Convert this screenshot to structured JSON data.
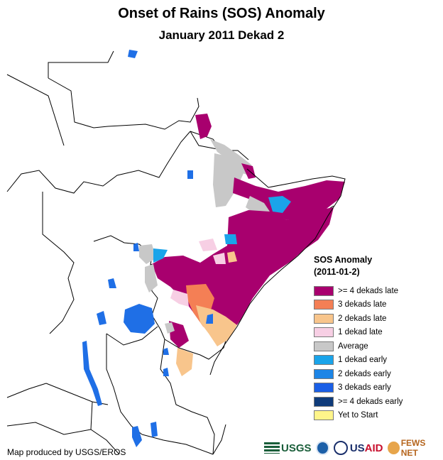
{
  "title": "Onset of Rains (SOS) Anomaly",
  "subtitle": "January 2011 Dekad 2",
  "legend": {
    "title": "SOS Anomaly",
    "date": "(2011-01-2)",
    "items": [
      {
        "label": ">= 4 dekads late",
        "color": "#a8006e"
      },
      {
        "label": "3 dekads late",
        "color": "#f47f55"
      },
      {
        "label": "2 dekads late",
        "color": "#f8c58c"
      },
      {
        "label": "1 dekad late",
        "color": "#f7cfe4"
      },
      {
        "label": "Average",
        "color": "#c8c8c8"
      },
      {
        "label": "1 dekad early",
        "color": "#1aa4ea"
      },
      {
        "label": "2 dekads early",
        "color": "#1d85e6"
      },
      {
        "label": "3 dekads early",
        "color": "#1a5fe6"
      },
      {
        "label": ">= 4 dekads early",
        "color": "#0f3b7a"
      },
      {
        "label": "Yet to Start",
        "color": "#fff58a"
      }
    ]
  },
  "credit": "Map produced by USGS/EROS",
  "logos": {
    "usgs": "USGS",
    "usaid_us": "US",
    "usaid_aid": "AID",
    "fews": "FEWS NET"
  },
  "colors": {
    "water": "#1f6fe6",
    "border": "#000000"
  }
}
